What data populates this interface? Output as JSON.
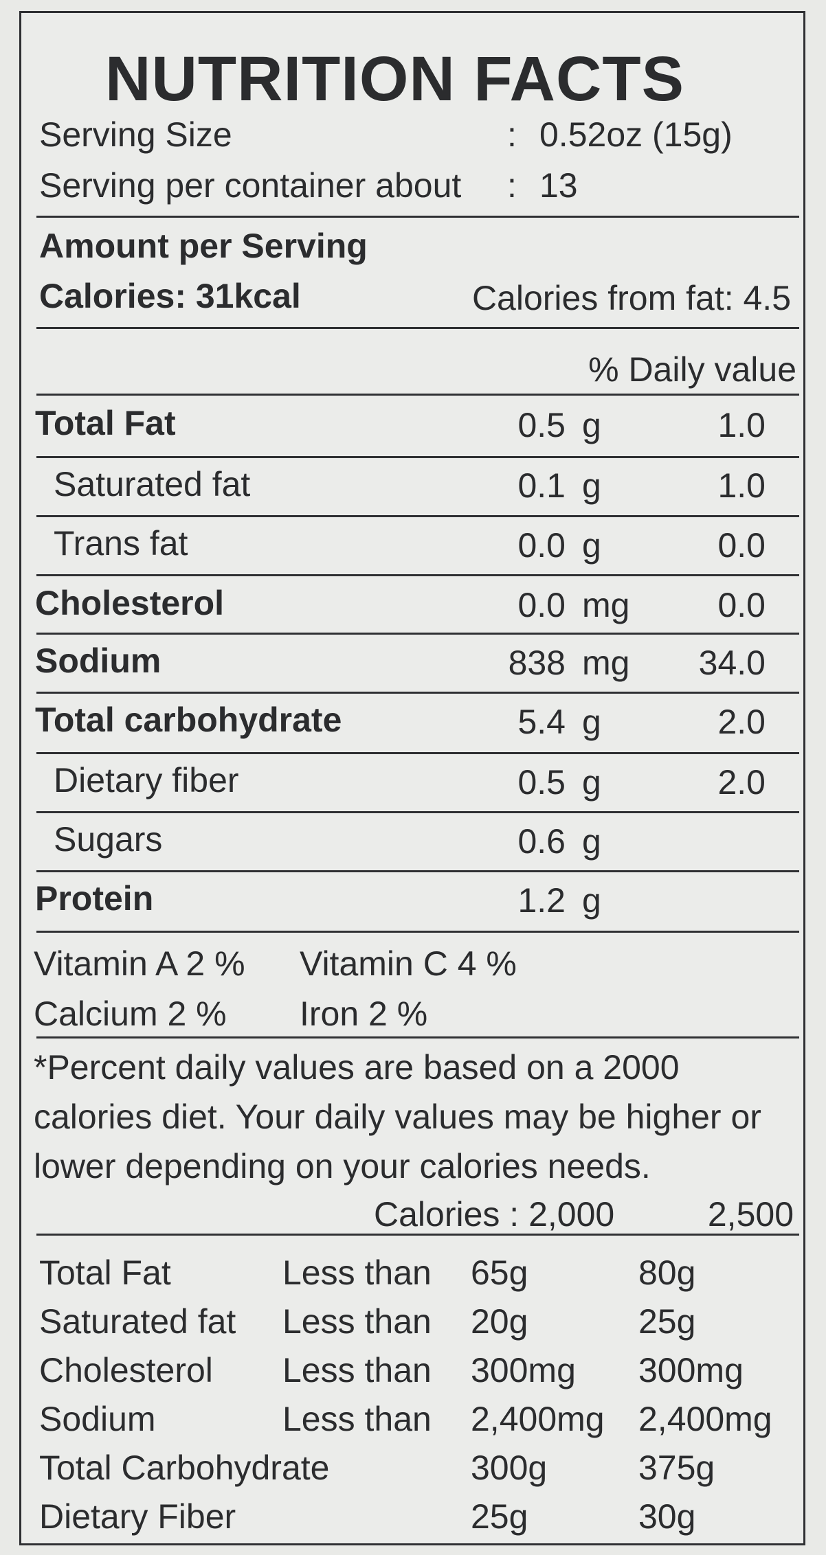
{
  "title": "NUTRITION FACTS",
  "serving": {
    "size_label": "Serving Size",
    "size_colon": ":",
    "size_value": "0.52oz (15g)",
    "per_container_label": "Serving per container about",
    "per_container_colon": ":",
    "per_container_value": "13"
  },
  "amount": {
    "header": "Amount per Serving",
    "calories": "Calories: 31kcal",
    "calories_from_fat": "Calories from fat: 4.5"
  },
  "daily_value_header": "% Daily value",
  "nutrients": [
    {
      "name": "Total Fat",
      "amount": "0.5",
      "unit": "g",
      "dv": "1.0"
    },
    {
      "name": "Saturated fat",
      "amount": "0.1",
      "unit": "g",
      "dv": "1.0"
    },
    {
      "name": "Trans fat",
      "amount": "0.0",
      "unit": "g",
      "dv": "0.0"
    },
    {
      "name": "Cholesterol",
      "amount": "0.0",
      "unit": "mg",
      "dv": "0.0"
    },
    {
      "name": "Sodium",
      "amount": "838",
      "unit": "mg",
      "dv": "34.0"
    },
    {
      "name": "Total carbohydrate",
      "amount": "5.4",
      "unit": "g",
      "dv": "2.0"
    },
    {
      "name": "Dietary fiber",
      "amount": "0.5",
      "unit": "g",
      "dv": "2.0"
    },
    {
      "name": "Sugars",
      "amount": "0.6",
      "unit": "g",
      "dv": ""
    },
    {
      "name": "Protein",
      "amount": "1.2",
      "unit": "g",
      "dv": ""
    }
  ],
  "vitamins": {
    "vitamin_a": "Vitamin A  2 %",
    "vitamin_c": "Vitamin C 4 %",
    "calcium": "Calcium  2 %",
    "iron": "Iron 2 %"
  },
  "footnote": {
    "line1": "*Percent daily values are based on a 2000",
    "line2": "calories diet. Your daily values may be higher or",
    "line3": "lower depending on your calories needs.",
    "calories_label": "Calories : 2,000",
    "calories_2500": "2,500"
  },
  "reference_table": [
    {
      "nutrient": "Total Fat",
      "qualifier": "Less than",
      "v2000": "65g",
      "v2500": "80g"
    },
    {
      "nutrient": "Saturated fat",
      "qualifier": "Less than",
      "v2000": "20g",
      "v2500": "25g"
    },
    {
      "nutrient": "Cholesterol",
      "qualifier": "Less than",
      "v2000": "300mg",
      "v2500": "300mg"
    },
    {
      "nutrient": "Sodium",
      "qualifier": "Less than",
      "v2000": "2,400mg",
      "v2500": "2,400mg"
    },
    {
      "nutrient": "Total Carbohydrate",
      "qualifier": "",
      "v2000": "300g",
      "v2500": "375g"
    },
    {
      "nutrient": "Dietary Fiber",
      "qualifier": "",
      "v2000": "25g",
      "v2500": "30g"
    }
  ]
}
